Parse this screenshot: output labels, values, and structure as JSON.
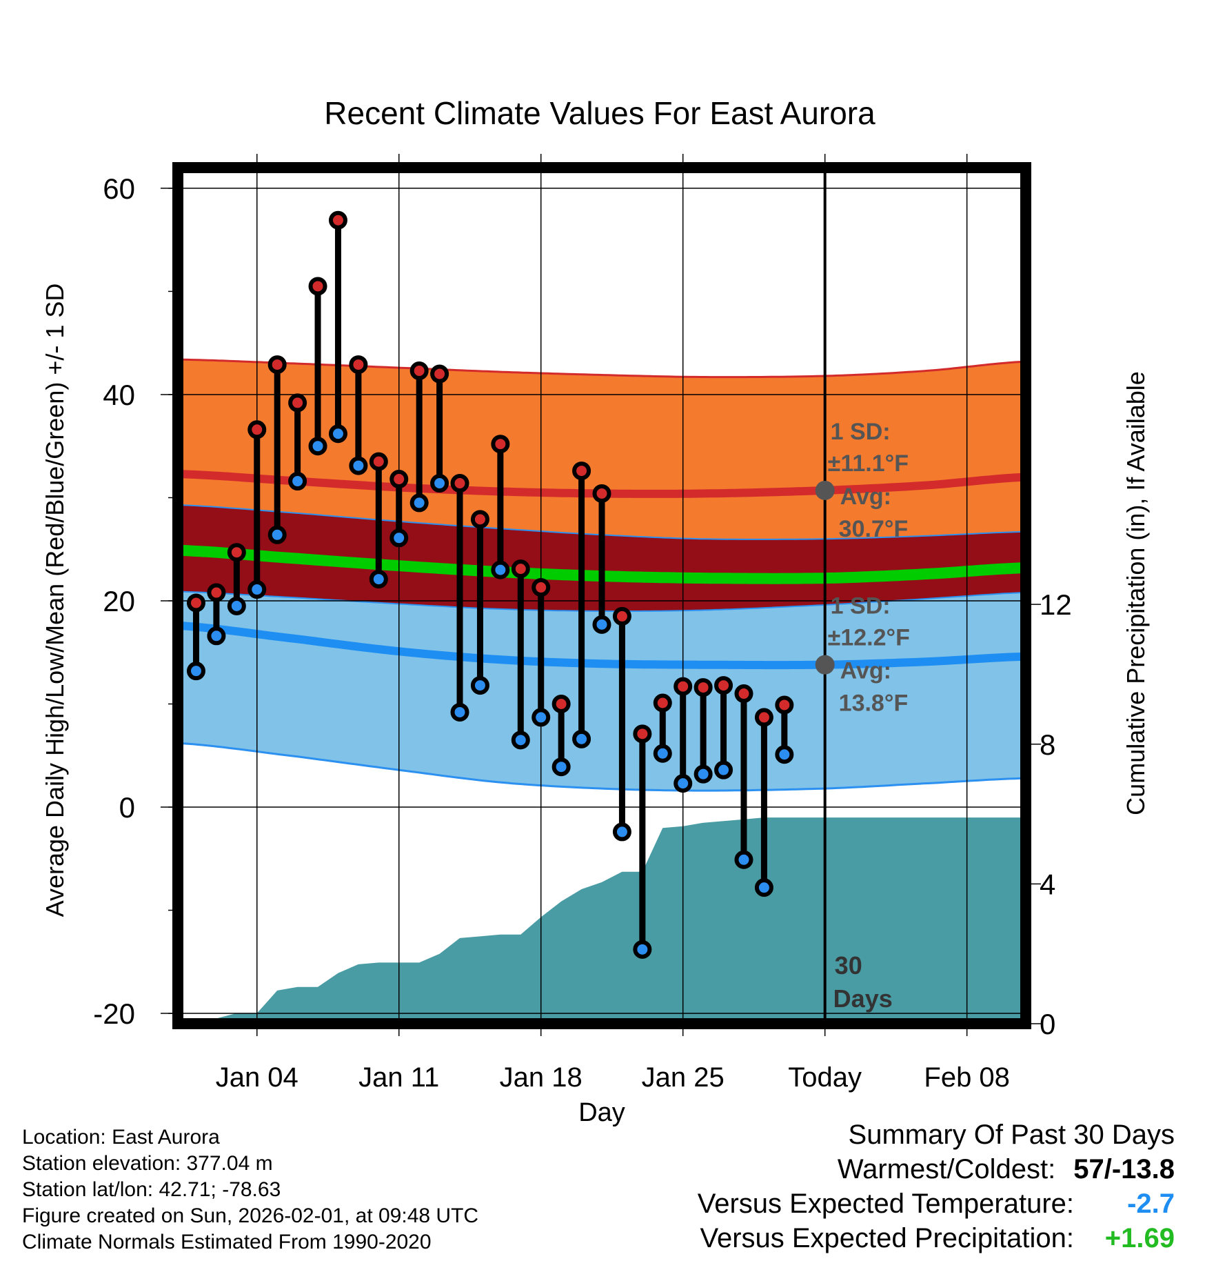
{
  "chart_data": {
    "type": "range-dot",
    "title": "Recent Climate Values For East Aurora",
    "xlabel": "Day",
    "ylabel": "Average Daily High/Low/Mean (Red/Blue/Green) +/- 1 SD",
    "y2label": "Cumulative Precipitation (in), If Available",
    "xlim": [
      -0.9,
      40.9
    ],
    "ylim": [
      -21,
      62
    ],
    "y2lim": [
      0,
      24.5
    ],
    "x_ticks": [
      {
        "x": 3,
        "label": "Jan 04"
      },
      {
        "x": 10,
        "label": "Jan 11"
      },
      {
        "x": 17,
        "label": "Jan 18"
      },
      {
        "x": 24,
        "label": "Jan 25"
      },
      {
        "x": 31,
        "label": "Today"
      },
      {
        "x": 38,
        "label": "Feb 08"
      }
    ],
    "y_ticks": [
      -20,
      0,
      20,
      40,
      60
    ],
    "y2_ticks": [
      0,
      4,
      8,
      12
    ],
    "today_x": 31,
    "window_label_num": "30",
    "window_label_unit": "Days",
    "normals": {
      "x": [
        -0.9,
        5,
        10,
        15,
        20,
        25,
        31,
        36,
        40.9
      ],
      "high_avg": [
        32.3,
        31.6,
        31.0,
        30.6,
        30.4,
        30.4,
        30.7,
        31.2,
        32.0
      ],
      "high_sd_upper": [
        43.4,
        43.0,
        42.6,
        42.2,
        41.9,
        41.7,
        41.8,
        42.3,
        43.2
      ],
      "high_sd_lower": [
        29.3,
        28.5,
        27.7,
        27.0,
        26.4,
        26.0,
        26.0,
        26.3,
        26.7
      ],
      "mean_avg": [
        24.9,
        24.1,
        23.4,
        22.8,
        22.4,
        22.2,
        22.2,
        22.6,
        23.2
      ],
      "low_avg": [
        17.6,
        16.3,
        15.1,
        14.3,
        13.9,
        13.8,
        13.8,
        14.1,
        14.6
      ],
      "low_sd_upper": [
        20.9,
        20.3,
        19.7,
        19.2,
        19.0,
        19.1,
        19.6,
        20.2,
        20.8
      ],
      "low_sd_lower": [
        6.2,
        4.9,
        3.6,
        2.4,
        1.8,
        1.6,
        1.8,
        2.3,
        2.8
      ]
    },
    "series": [
      {
        "name": "High",
        "color": "#d32b2b",
        "x": [
          0,
          1,
          2,
          3,
          4,
          5,
          6,
          7,
          8,
          9,
          10,
          11,
          12,
          13,
          14,
          15,
          16,
          17,
          18,
          19,
          20,
          21,
          22,
          23,
          24,
          25,
          26,
          27,
          28,
          29
        ],
        "values": [
          19.8,
          20.8,
          24.7,
          36.6,
          42.9,
          39.2,
          50.5,
          56.9,
          42.9,
          33.5,
          31.8,
          42.3,
          42.0,
          31.4,
          27.9,
          35.2,
          23.1,
          21.3,
          10.0,
          32.6,
          30.4,
          18.5,
          7.1,
          10.1,
          11.7,
          11.6,
          11.8,
          11.0,
          8.7,
          9.9
        ]
      },
      {
        "name": "Low",
        "color": "#2b8ef0",
        "x": [
          0,
          1,
          2,
          3,
          4,
          5,
          6,
          7,
          8,
          9,
          10,
          11,
          12,
          13,
          14,
          15,
          16,
          17,
          18,
          19,
          20,
          21,
          22,
          23,
          24,
          25,
          26,
          27,
          28,
          29
        ],
        "values": [
          13.2,
          16.6,
          19.5,
          21.1,
          26.4,
          31.6,
          35.0,
          36.2,
          33.1,
          22.1,
          26.1,
          29.5,
          31.4,
          9.2,
          11.8,
          23.0,
          6.5,
          8.7,
          3.9,
          6.6,
          17.7,
          -2.4,
          -13.8,
          5.2,
          2.3,
          3.2,
          3.6,
          -5.1,
          -7.8,
          5.1
        ]
      },
      {
        "name": "Cumulative Precipitation",
        "color": "#4a9ca4",
        "x": [
          -0.9,
          0,
          1,
          2,
          3,
          4,
          5,
          6,
          7,
          8,
          9,
          10,
          11,
          12,
          13,
          14,
          15,
          16,
          17,
          18,
          19,
          20,
          21,
          22,
          23,
          24,
          25,
          26,
          27,
          28,
          29,
          30,
          31,
          32,
          33,
          34,
          35,
          36,
          37,
          38,
          39,
          40,
          40.9
        ],
        "values": [
          0,
          0.05,
          0.15,
          0.3,
          0.3,
          0.95,
          1.05,
          1.05,
          1.45,
          1.7,
          1.75,
          1.75,
          1.75,
          2.0,
          2.45,
          2.5,
          2.55,
          2.55,
          3.05,
          3.5,
          3.85,
          4.05,
          4.35,
          4.35,
          5.6,
          5.65,
          5.75,
          5.8,
          5.85,
          5.9,
          5.9,
          5.9,
          5.9,
          5.9,
          5.9,
          5.9,
          5.9,
          5.9,
          5.9,
          5.9,
          5.9,
          5.9,
          5.9
        ]
      }
    ],
    "annotations": {
      "high": {
        "avg": 30.7,
        "sd_line1": "1 SD:",
        "sd_line2": "±11.1°F",
        "avg_line1": "Avg:",
        "avg_line2": "30.7°F"
      },
      "low": {
        "avg": 13.8,
        "sd_line1": "1 SD:",
        "sd_line2": "±12.2°F",
        "avg_line1": "Avg:",
        "avg_line2": "13.8°F"
      }
    }
  },
  "colors": {
    "high_sd_band": "#f47a2e",
    "high_avg_line": "#d32b2b",
    "overlap_band": "#930e16",
    "mean_line": "#00cc00",
    "low_sd_band": "#80c2e8",
    "low_avg_line": "#1e8ef2",
    "low_sd_edge": "#2b90f0",
    "precip_fill": "#4a9ca4",
    "annotation_text": "#555555"
  },
  "info": {
    "location": "Location: East Aurora",
    "elevation": "Station elevation: 377.04 m",
    "latlon": "Station lat/lon: 42.71; -78.63",
    "created": "Figure created on Sun, 2026-02-01, at 09:48 UTC",
    "normals": "Climate Normals Estimated From 1990-2020"
  },
  "summary": {
    "heading": "Summary Of Past 30 Days",
    "warm_cold_label": "Warmest/Coldest:",
    "warm_cold_value": "57/-13.8",
    "temp_label": "Versus Expected Temperature:",
    "temp_value": "-2.7",
    "temp_color": "#1e8ef2",
    "precip_label": "Versus Expected Precipitation:",
    "precip_value": "+1.69",
    "precip_color": "#22bb22"
  }
}
